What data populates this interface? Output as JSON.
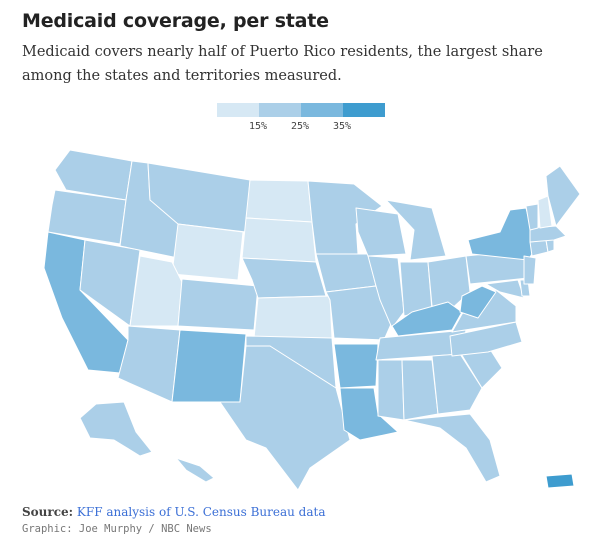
{
  "header": {
    "title": "Medicaid coverage, per state",
    "subtitle": "Medicaid covers nearly half of Puerto Rico residents, the largest share among the states and territories measured."
  },
  "legend": {
    "swatches": [
      "#d6e8f4",
      "#abcfe8",
      "#7ab8de",
      "#3e9ccf"
    ],
    "labels": [
      "15%",
      "25%",
      "35%"
    ]
  },
  "map": {
    "colors": {
      "lightest": "#d6e8f4",
      "light": "#abcfe8",
      "medium": "#7ab8de",
      "dark": "#3e9ccf",
      "border": "#ffffff"
    }
  },
  "footer": {
    "source_label": "Source:",
    "source_link": "KFF analysis of U.S. Census Bureau data",
    "credit": "Graphic: Joe Murphy / NBC News"
  }
}
